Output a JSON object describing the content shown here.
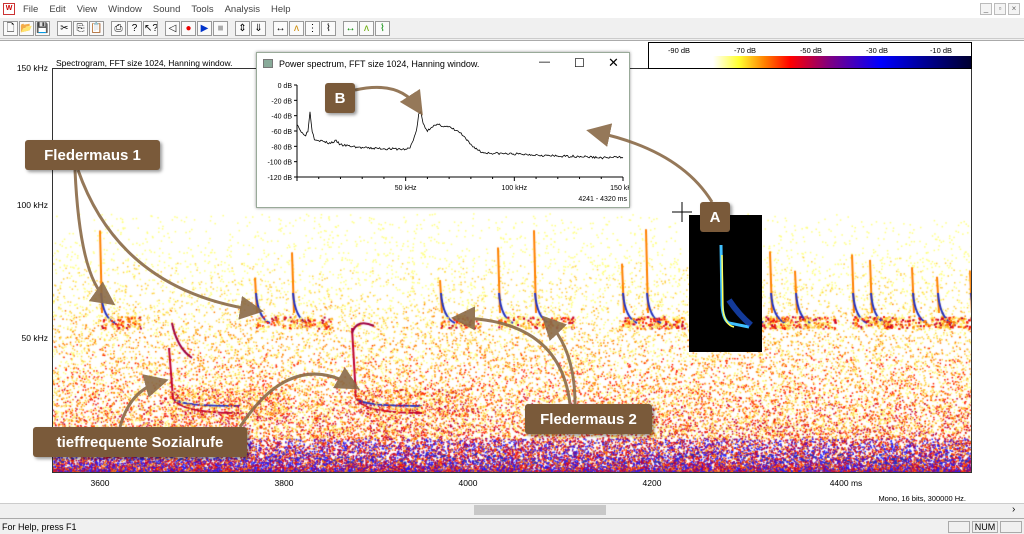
{
  "menu": [
    "File",
    "Edit",
    "View",
    "Window",
    "Sound",
    "Tools",
    "Analysis",
    "Help"
  ],
  "toolbar_icons": [
    "new-icon",
    "open-icon",
    "save-icon",
    "cut-icon",
    "copy-icon",
    "paste-icon",
    "print-icon",
    "help-icon",
    "context-help-icon",
    "speaker-icon",
    "record-icon",
    "play-icon",
    "stop-icon",
    "zoom-in-icon",
    "zoom-out-icon",
    "marker-icon",
    "spectrum-icon",
    "multi-spectrum-icon",
    "histogram-icon",
    "marker-green-icon",
    "spectrum-green-icon",
    "histogram-green-icon"
  ],
  "spectrogram": {
    "title": "Spectrogram, FFT size 1024, Hanning window.",
    "y_ticks": [
      "150 kHz",
      "100 kHz",
      "50 kHz"
    ],
    "x_ticks": [
      "3600",
      "3800",
      "4000",
      "4200",
      "4400 ms"
    ],
    "info": "Mono, 16 bits, 300000 Hz."
  },
  "colorbar": {
    "labels": [
      "-90 dB",
      "-70 dB",
      "-50 dB",
      "-30 dB",
      "-10 dB"
    ]
  },
  "power_spectrum": {
    "title": "Power spectrum, FFT size 1024, Hanning window.",
    "y_ticks": [
      "0 dB",
      "-20 dB",
      "-40 dB",
      "-60 dB",
      "-80 dB",
      "-100 dB",
      "-120 dB"
    ],
    "x_ticks": [
      "50 kHz",
      "100 kHz",
      "150 kHz"
    ],
    "range": "4241 - 4320 ms",
    "curve_khz": [
      0,
      2,
      4,
      5,
      6,
      7,
      8,
      10,
      15,
      18,
      20,
      25,
      30,
      40,
      50,
      52,
      55,
      56,
      57,
      58,
      60,
      62,
      65,
      70,
      75,
      80,
      85,
      90,
      100,
      110,
      120,
      130,
      140,
      150
    ],
    "curve_db": [
      -50,
      -62,
      -65,
      -60,
      -35,
      -60,
      -70,
      -72,
      -76,
      -73,
      -78,
      -80,
      -82,
      -83,
      -84,
      -82,
      -60,
      -38,
      -36,
      -50,
      -60,
      -54,
      -52,
      -55,
      -62,
      -78,
      -88,
      -89,
      -90,
      -91,
      -93,
      -93,
      -95,
      -94
    ]
  },
  "annotations": {
    "f1": "Fledermaus 1",
    "f2": "Fledermaus 2",
    "social": "tieffrequente Sozialrufe",
    "a": "A",
    "b": "B"
  },
  "status": {
    "help": "For Help, press F1",
    "num": "NUM"
  },
  "colors": {
    "callout": "#7a5a3a"
  }
}
